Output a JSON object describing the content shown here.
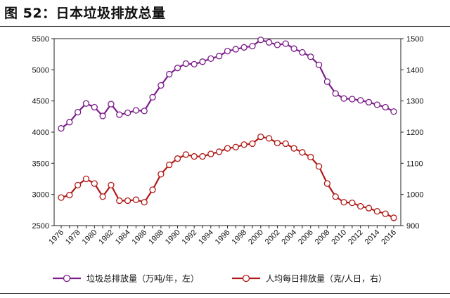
{
  "header": {
    "title": "图 52：日本垃圾排放总量"
  },
  "chart_data": {
    "type": "line",
    "x": [
      1976,
      1977,
      1978,
      1979,
      1980,
      1981,
      1982,
      1983,
      1984,
      1985,
      1986,
      1987,
      1988,
      1989,
      1990,
      1991,
      1992,
      1993,
      1994,
      1995,
      1996,
      1997,
      1998,
      1999,
      2000,
      2001,
      2002,
      2003,
      2004,
      2005,
      2006,
      2007,
      2008,
      2009,
      2010,
      2011,
      2012,
      2013,
      2014,
      2015,
      2016
    ],
    "xticks": [
      "1976",
      "1978",
      "1980",
      "1982",
      "1984",
      "1986",
      "1988",
      "1990",
      "1992",
      "1994",
      "1996",
      "1998",
      "2000",
      "2002",
      "2004",
      "2006",
      "2008",
      "2010",
      "2012",
      "2014",
      "2016"
    ],
    "y_left": {
      "min": 2500,
      "max": 5500,
      "ticks": [
        "2500",
        "3000",
        "3500",
        "4000",
        "4500",
        "5000",
        "5500"
      ]
    },
    "y_right": {
      "min": 900,
      "max": 1500,
      "ticks": [
        "900",
        "1000",
        "1100",
        "1200",
        "1300",
        "1400",
        "1500"
      ]
    },
    "series": [
      {
        "name": "垃圾总排放量（万吨/年，左）",
        "axis": "left",
        "color": "#7b1d8a",
        "values": [
          4060,
          4160,
          4320,
          4460,
          4400,
          4260,
          4450,
          4280,
          4310,
          4350,
          4340,
          4560,
          4750,
          4930,
          5030,
          5100,
          5090,
          5130,
          5180,
          5220,
          5300,
          5330,
          5360,
          5380,
          5480,
          5440,
          5400,
          5420,
          5340,
          5280,
          5210,
          5080,
          4810,
          4620,
          4540,
          4530,
          4510,
          4480,
          4440,
          4400,
          4330
        ]
      },
      {
        "name": "人均每日排放量（克/人日，右）",
        "axis": "right",
        "color": "#b01a17",
        "values": [
          990,
          998,
          1030,
          1050,
          1035,
          993,
          1030,
          980,
          980,
          983,
          975,
          1015,
          1065,
          1095,
          1115,
          1128,
          1122,
          1122,
          1130,
          1137,
          1148,
          1152,
          1160,
          1163,
          1185,
          1180,
          1165,
          1163,
          1148,
          1135,
          1120,
          1090,
          1035,
          993,
          975,
          973,
          962,
          956,
          946,
          938,
          925
        ]
      }
    ]
  }
}
